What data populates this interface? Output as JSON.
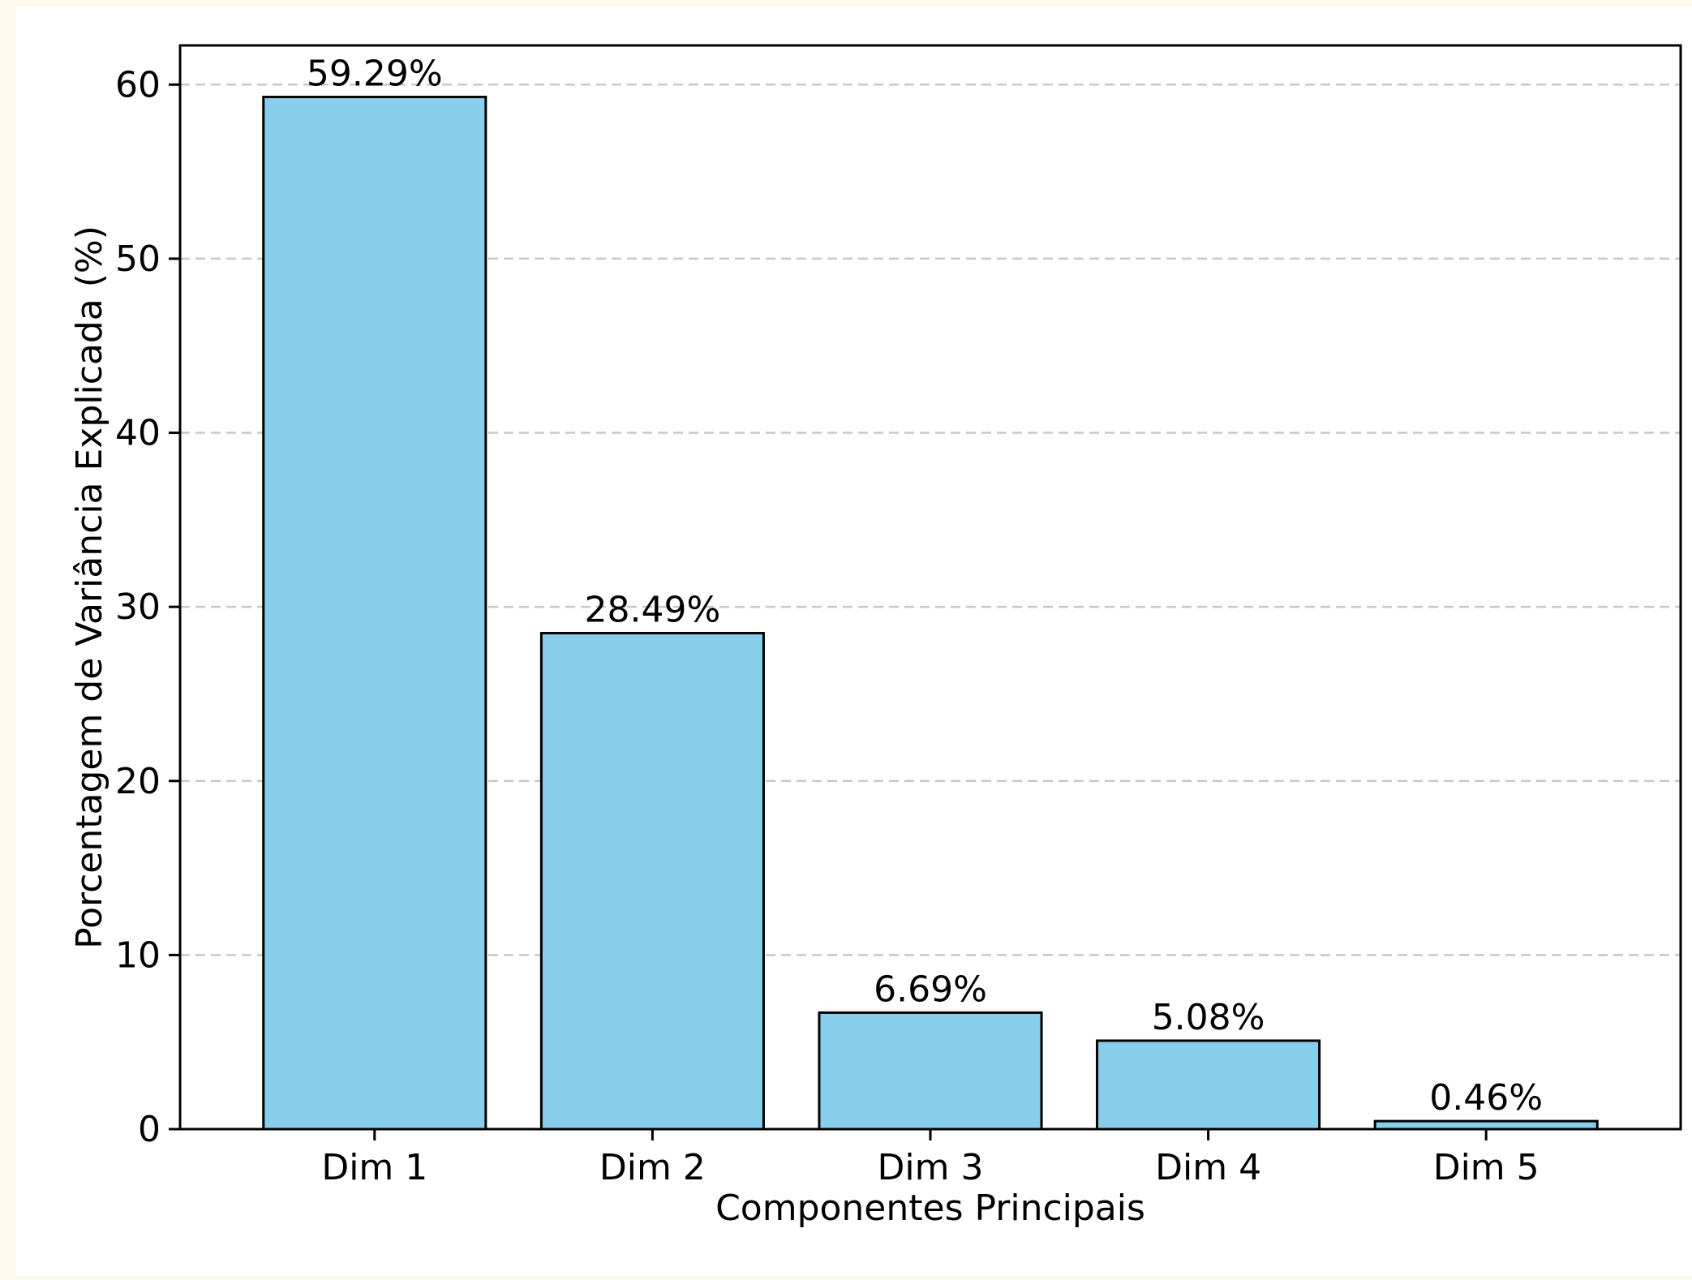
{
  "chart_data": {
    "type": "bar",
    "categories": [
      "Dim 1",
      "Dim 2",
      "Dim 3",
      "Dim 4",
      "Dim 5"
    ],
    "values": [
      59.29,
      28.49,
      6.69,
      5.08,
      0.46
    ],
    "value_labels": [
      "59.29%",
      "28.49%",
      "6.69%",
      "5.08%",
      "0.46%"
    ],
    "xlabel": "Componentes Principais",
    "ylabel": "Porcentagem de Variância Explicada (%)",
    "ylim": [
      0,
      62.25
    ],
    "yticks": [
      0,
      10,
      20,
      30,
      40,
      50,
      60
    ],
    "grid": "horizontal-dashed",
    "bar_color": "#87ceeb",
    "bar_edge_color": "#000000",
    "grid_color": "#c8c8c8",
    "background": "#ffffff",
    "page_background": "#fef8ea"
  }
}
